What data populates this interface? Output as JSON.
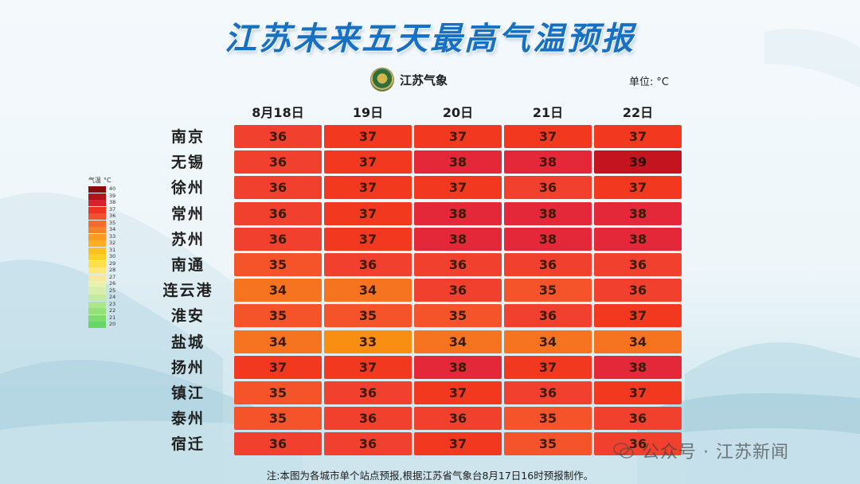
{
  "title": "江苏未来五天最高气温预报",
  "logo_text": "江苏气象",
  "unit": {
    "label": "单位:",
    "value": "°C"
  },
  "columns": [
    "8月18日",
    "19日",
    "20日",
    "21日",
    "22日"
  ],
  "rows": [
    {
      "city": "南京",
      "values": [
        36,
        37,
        37,
        37,
        37
      ]
    },
    {
      "city": "无锡",
      "values": [
        36,
        37,
        38,
        38,
        39
      ]
    },
    {
      "city": "徐州",
      "values": [
        36,
        37,
        37,
        36,
        37
      ]
    },
    {
      "city": "常州",
      "values": [
        36,
        37,
        38,
        38,
        38
      ]
    },
    {
      "city": "苏州",
      "values": [
        36,
        37,
        38,
        38,
        38
      ]
    },
    {
      "city": "南通",
      "values": [
        35,
        36,
        36,
        36,
        36
      ]
    },
    {
      "city": "连云港",
      "values": [
        34,
        34,
        36,
        35,
        36
      ]
    },
    {
      "city": "淮安",
      "values": [
        35,
        35,
        35,
        36,
        37
      ]
    },
    {
      "city": "盐城",
      "values": [
        34,
        33,
        34,
        34,
        34
      ]
    },
    {
      "city": "扬州",
      "values": [
        37,
        37,
        38,
        37,
        38
      ]
    },
    {
      "city": "镇江",
      "values": [
        35,
        36,
        37,
        36,
        37
      ]
    },
    {
      "city": "泰州",
      "values": [
        35,
        36,
        36,
        35,
        36
      ]
    },
    {
      "city": "宿迁",
      "values": [
        36,
        36,
        37,
        35,
        36
      ]
    }
  ],
  "legend": {
    "title": "气温",
    "unit": "°C",
    "items": [
      {
        "value": "40",
        "color": "#8b0a0a"
      },
      {
        "value": "39",
        "color": "#b3141b"
      },
      {
        "value": "38",
        "color": "#d6222b"
      },
      {
        "value": "37",
        "color": "#ee3325"
      },
      {
        "value": "36",
        "color": "#f2502f"
      },
      {
        "value": "35",
        "color": "#f56a2e"
      },
      {
        "value": "34",
        "color": "#f7822a"
      },
      {
        "value": "33",
        "color": "#f99a22"
      },
      {
        "value": "32",
        "color": "#fbae1f"
      },
      {
        "value": "31",
        "color": "#fcc11f"
      },
      {
        "value": "30",
        "color": "#fdd026"
      },
      {
        "value": "29",
        "color": "#fde049"
      },
      {
        "value": "28",
        "color": "#fde97a"
      },
      {
        "value": "27",
        "color": "#f7e7a0"
      },
      {
        "value": "26",
        "color": "#eaf0b0"
      },
      {
        "value": "25",
        "color": "#d8efaa"
      },
      {
        "value": "24",
        "color": "#c4eb9c"
      },
      {
        "value": "23",
        "color": "#ade68b"
      },
      {
        "value": "22",
        "color": "#95e07a"
      },
      {
        "value": "21",
        "color": "#7fdb6e"
      },
      {
        "value": "20",
        "color": "#66d666"
      }
    ]
  },
  "cell_colors": {
    "33": "#f88f12",
    "34": "#f67420",
    "35": "#f5542b",
    "36": "#f2402e",
    "37": "#f2391f",
    "38": "#e4283a",
    "39": "#c4141f"
  },
  "footnote": "注:本图为各城市单个站点预报,根据江苏省气象台8月17日16时预报制作。",
  "watermark": "公众号 · 江苏新闻"
}
